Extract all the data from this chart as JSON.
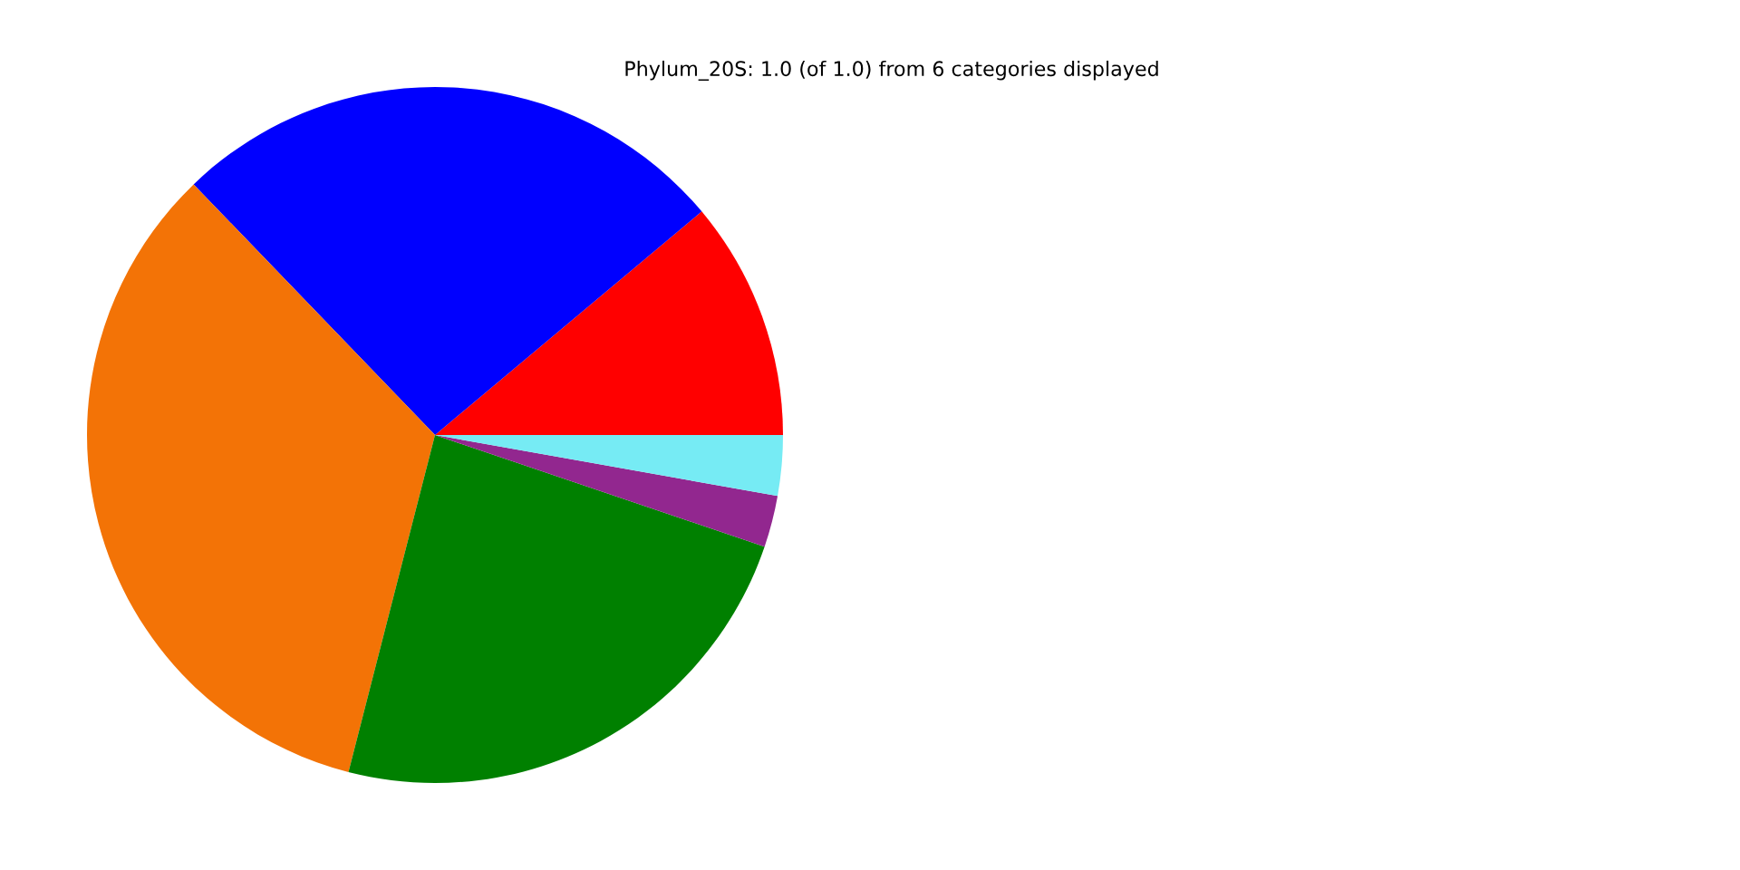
{
  "chart_data": {
    "type": "pie",
    "title": "Phylum_20S: 1.0 (of 1.0) from 6 categories displayed",
    "categories": [
      null,
      null,
      null,
      null,
      null,
      null
    ],
    "values": [
      11.1,
      26.1,
      33.8,
      23.8,
      2.4,
      2.8
    ],
    "colors": [
      "#ff0000",
      "#0000ff",
      "#f37306",
      "#008000",
      "#92278f",
      "#76ebf4"
    ],
    "legend": false
  }
}
